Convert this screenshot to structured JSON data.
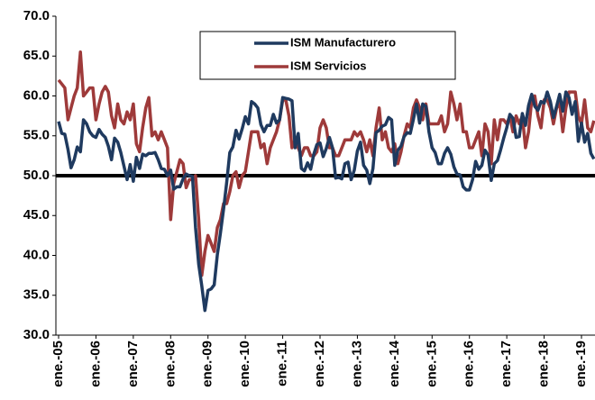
{
  "chart_data": {
    "type": "line",
    "categories": [
      "ene.-05",
      null,
      null,
      null,
      null,
      null,
      null,
      null,
      null,
      null,
      null,
      null,
      "ene.-06",
      null,
      null,
      null,
      null,
      null,
      null,
      null,
      null,
      null,
      null,
      null,
      "ene.-07",
      null,
      null,
      null,
      null,
      null,
      null,
      null,
      null,
      null,
      null,
      null,
      "ene.-08",
      null,
      null,
      null,
      null,
      null,
      null,
      null,
      null,
      null,
      null,
      null,
      "ene.-09",
      null,
      null,
      null,
      null,
      null,
      null,
      null,
      null,
      null,
      null,
      null,
      "ene.-10",
      null,
      null,
      null,
      null,
      null,
      null,
      null,
      null,
      null,
      null,
      null,
      "ene.-11",
      null,
      null,
      null,
      null,
      null,
      null,
      null,
      null,
      null,
      null,
      null,
      "ene.-12",
      null,
      null,
      null,
      null,
      null,
      null,
      null,
      null,
      null,
      null,
      null,
      "ene.-13",
      null,
      null,
      null,
      null,
      null,
      null,
      null,
      null,
      null,
      null,
      null,
      "ene.-14",
      null,
      null,
      null,
      null,
      null,
      null,
      null,
      null,
      null,
      null,
      null,
      "ene.-15",
      null,
      null,
      null,
      null,
      null,
      null,
      null,
      null,
      null,
      null,
      null,
      "ene.-16",
      null,
      null,
      null,
      null,
      null,
      null,
      null,
      null,
      null,
      null,
      null,
      "ene.-17",
      null,
      null,
      null,
      null,
      null,
      null,
      null,
      null,
      null,
      null,
      null,
      "ene.-18",
      null,
      null,
      null,
      null,
      null,
      null,
      null,
      null,
      null,
      null,
      null,
      "ene.-19",
      null,
      null,
      null,
      null
    ],
    "series": [
      {
        "name": "ISM Manufacturero",
        "color": "#1f3a5f",
        "values": [
          56.8,
          55.3,
          55.2,
          53.3,
          51.0,
          52.0,
          53.6,
          53.0,
          57.0,
          56.5,
          55.5,
          55.0,
          54.8,
          55.8,
          55.2,
          54.8,
          53.7,
          52.0,
          54.7,
          54.2,
          52.9,
          51.2,
          49.5,
          51.4,
          49.3,
          52.3,
          50.9,
          52.7,
          52.5,
          52.8,
          52.8,
          52.9,
          52.0,
          50.9,
          50.8,
          50.0,
          50.7,
          48.3,
          48.6,
          48.6,
          49.6,
          50.2,
          50.0,
          49.9,
          43.5,
          38.9,
          36.2,
          33.1,
          35.6,
          35.8,
          36.3,
          40.1,
          42.8,
          45.8,
          49.1,
          52.9,
          53.6,
          55.7,
          54.6,
          55.9,
          57.4,
          56.5,
          59.3,
          59.0,
          58.5,
          56.4,
          55.5,
          56.3,
          56.3,
          57.7,
          56.6,
          57.0,
          59.8,
          59.7,
          59.6,
          59.4,
          53.5,
          55.3,
          50.9,
          50.6,
          51.6,
          50.8,
          52.7,
          53.9,
          54.1,
          52.4,
          53.4,
          54.8,
          53.5,
          49.7,
          49.8,
          49.6,
          51.5,
          51.7,
          49.5,
          50.7,
          53.1,
          54.2,
          51.3,
          50.7,
          49.0,
          50.9,
          55.4,
          55.7,
          56.2,
          56.4,
          57.3,
          57.0,
          51.3,
          53.2,
          53.7,
          54.9,
          55.4,
          55.3,
          57.1,
          59.0,
          56.6,
          59.0,
          58.7,
          55.5,
          53.5,
          52.9,
          51.5,
          51.5,
          52.8,
          53.5,
          52.7,
          51.1,
          50.2,
          50.1,
          48.6,
          48.2,
          48.2,
          49.5,
          51.8,
          50.8,
          51.3,
          53.2,
          52.6,
          49.4,
          51.5,
          51.9,
          53.2,
          54.7,
          56.0,
          57.7,
          57.2,
          54.8,
          54.9,
          57.8,
          56.3,
          58.8,
          60.2,
          58.7,
          58.2,
          59.3,
          59.1,
          60.5,
          59.3,
          57.3,
          58.7,
          60.2,
          58.1,
          60.5,
          59.8,
          57.7,
          59.3,
          54.3,
          56.6,
          54.2,
          55.3,
          52.8,
          52.1
        ]
      },
      {
        "name": "ISM Servicios",
        "color": "#9e3a3a",
        "values": [
          62.0,
          61.5,
          61.0,
          57.0,
          58.5,
          60.0,
          61.0,
          65.5,
          60.0,
          60.5,
          61.0,
          61.0,
          57.0,
          59.0,
          60.5,
          61.2,
          60.5,
          57.5,
          56.0,
          59.0,
          57.0,
          56.5,
          58.0,
          57.0,
          59.0,
          54.0,
          53.0,
          56.0,
          58.5,
          59.8,
          55.0,
          55.5,
          54.5,
          55.5,
          54.5,
          53.5,
          44.5,
          49.0,
          50.5,
          52.0,
          51.5,
          48.5,
          49.5,
          49.5,
          50.0,
          44.5,
          37.5,
          40.5,
          42.5,
          41.5,
          40.5,
          43.5,
          44.5,
          46.5,
          46.5,
          48.0,
          50.0,
          50.5,
          48.5,
          50.0,
          50.5,
          53.0,
          55.5,
          55.5,
          55.5,
          53.5,
          54.0,
          51.5,
          53.5,
          54.5,
          55.5,
          57.0,
          59.5,
          59.5,
          57.5,
          53.5,
          54.5,
          53.5,
          52.5,
          53.5,
          53.5,
          52.5,
          52.5,
          53.0,
          56.0,
          57.0,
          56.0,
          53.5,
          53.5,
          52.5,
          52.5,
          53.5,
          54.5,
          54.5,
          54.5,
          55.5,
          55.0,
          55.5,
          54.5,
          53.0,
          54.5,
          52.5,
          56.0,
          58.5,
          54.5,
          55.5,
          53.5,
          53.0,
          54.0,
          51.5,
          53.0,
          55.0,
          56.5,
          56.0,
          58.5,
          59.5,
          58.5,
          57.0,
          59.0,
          56.5,
          56.5,
          56.5,
          56.5,
          57.5,
          55.5,
          56.5,
          60.5,
          59.0,
          57.0,
          59.0,
          55.5,
          55.5,
          53.5,
          53.5,
          54.5,
          55.5,
          52.5,
          56.5,
          55.5,
          51.5,
          57.0,
          54.5,
          57.0,
          57.0,
          56.5,
          57.5,
          55.5,
          57.5,
          56.5,
          57.5,
          53.5,
          55.5,
          59.5,
          60.0,
          57.5,
          56.0,
          59.5,
          59.5,
          58.5,
          56.5,
          58.5,
          59.1,
          55.5,
          58.5,
          60.5,
          60.5,
          60.5,
          57.5,
          56.5,
          59.5,
          56.0,
          55.5,
          56.9
        ]
      }
    ],
    "ylim": [
      30,
      70
    ],
    "yticks": [
      {
        "value": 30,
        "label": "30.0"
      },
      {
        "value": 35,
        "label": "35.0"
      },
      {
        "value": 40,
        "label": "40.0"
      },
      {
        "value": 45,
        "label": "45.0"
      },
      {
        "value": 50,
        "label": "50.0"
      },
      {
        "value": 55,
        "label": "55.0"
      },
      {
        "value": 60,
        "label": "60.0"
      },
      {
        "value": 65,
        "label": "65.0"
      },
      {
        "value": 70,
        "label": "70.0"
      }
    ],
    "reference_line": 50,
    "grid": false,
    "legend": "top"
  }
}
